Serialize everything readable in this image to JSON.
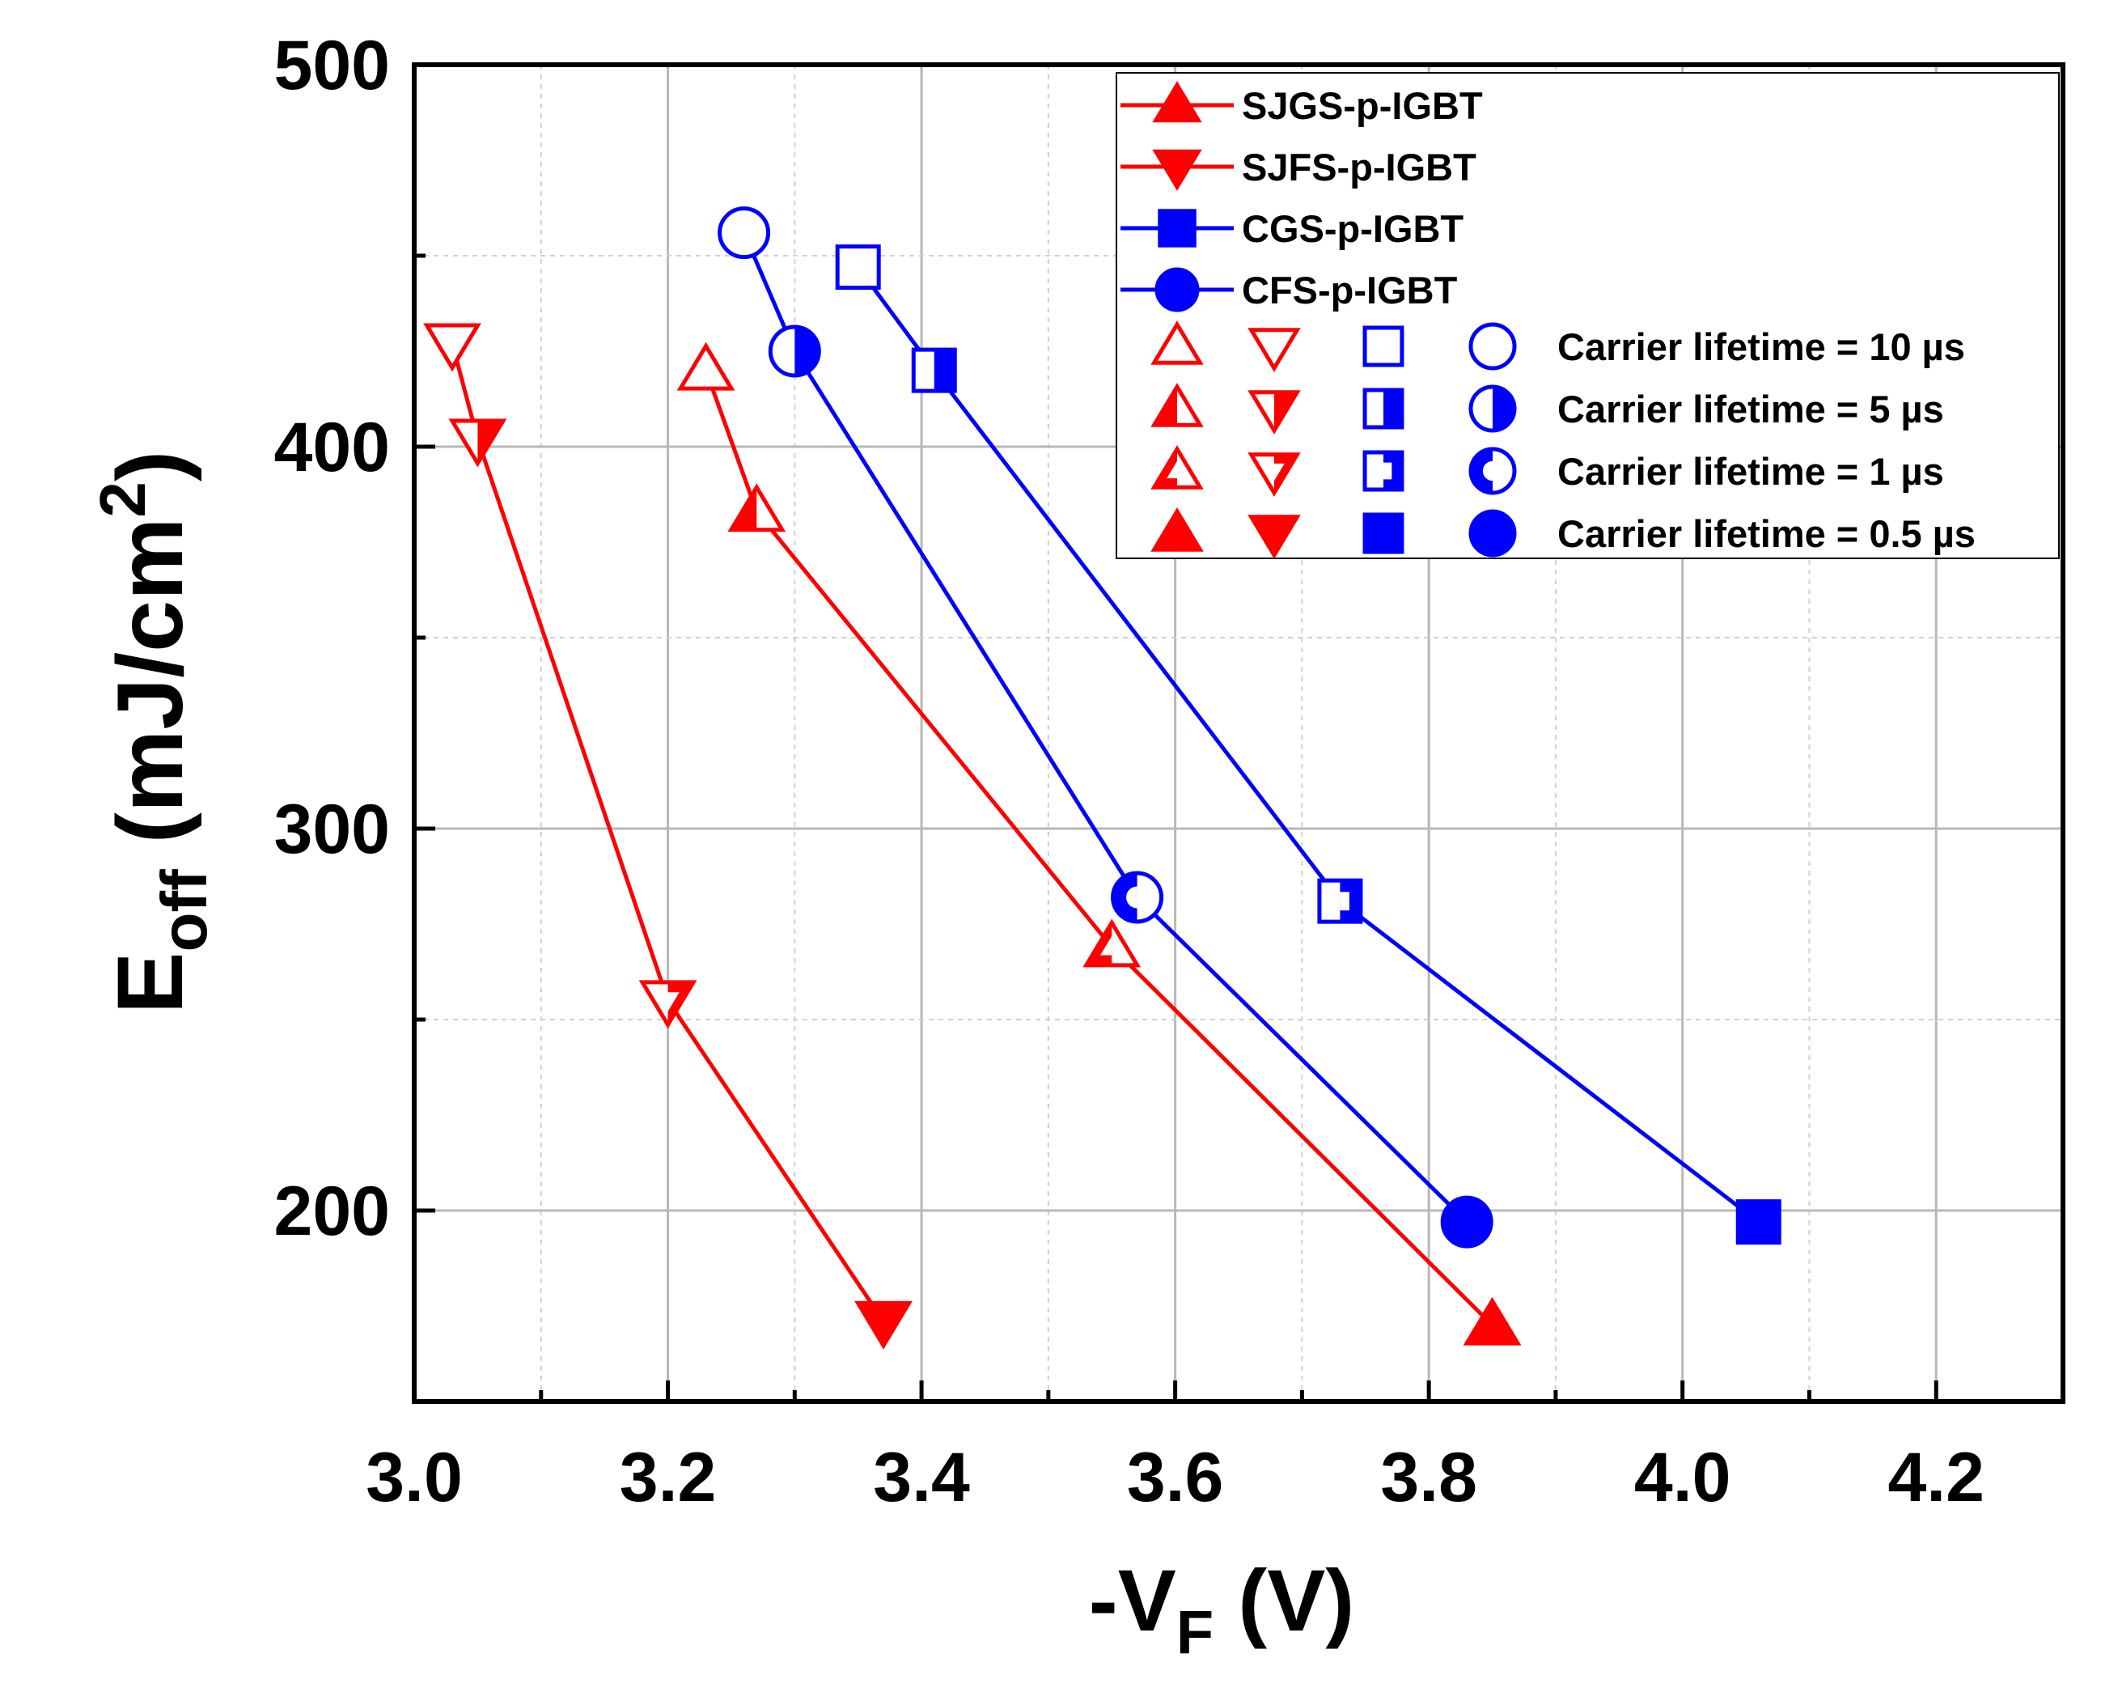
{
  "chart_data": {
    "type": "line",
    "title": "",
    "xlabel": {
      "prefix": "-V",
      "sub": "F",
      "suffix": " (V)"
    },
    "ylabel": {
      "prefix": "E",
      "sub": "off",
      "mid": " (mJ/cm",
      "sup": "2",
      "suffix": ")"
    },
    "xlim": [
      3.0,
      4.3
    ],
    "ylim": [
      150,
      500
    ],
    "xticks": [
      "3.0",
      "3.2",
      "3.4",
      "3.6",
      "3.8",
      "4.0",
      "4.2"
    ],
    "yticks": [
      "200",
      "300",
      "400",
      "500"
    ],
    "grid": true,
    "colors": {
      "red": "#ff0000",
      "blue": "#0000ff"
    },
    "series": [
      {
        "name": "SJGS-p-IGBT",
        "color": "#ff0000",
        "marker": "triangle-up",
        "points": [
          {
            "x": 3.23,
            "y": 420,
            "fill": "none"
          },
          {
            "x": 3.27,
            "y": 383,
            "fill": "left"
          },
          {
            "x": 3.55,
            "y": 269,
            "fill": "left-outline"
          },
          {
            "x": 3.85,
            "y": 170,
            "fill": "full"
          }
        ]
      },
      {
        "name": "SJFS-p-IGBT",
        "color": "#ff0000",
        "marker": "triangle-down",
        "points": [
          {
            "x": 3.03,
            "y": 427,
            "fill": "none"
          },
          {
            "x": 3.05,
            "y": 402,
            "fill": "right"
          },
          {
            "x": 3.2,
            "y": 255,
            "fill": "right-outline"
          },
          {
            "x": 3.37,
            "y": 171,
            "fill": "full"
          }
        ]
      },
      {
        "name": "CGS-p-IGBT",
        "color": "#0000ff",
        "marker": "square",
        "points": [
          {
            "x": 3.35,
            "y": 447,
            "fill": "none"
          },
          {
            "x": 3.41,
            "y": 420,
            "fill": "right"
          },
          {
            "x": 3.73,
            "y": 281,
            "fill": "right-outline"
          },
          {
            "x": 4.06,
            "y": 197,
            "fill": "full"
          }
        ]
      },
      {
        "name": "CFS-p-IGBT",
        "color": "#0000ff",
        "marker": "circle",
        "points": [
          {
            "x": 3.26,
            "y": 456,
            "fill": "none"
          },
          {
            "x": 3.3,
            "y": 425,
            "fill": "right"
          },
          {
            "x": 3.57,
            "y": 282,
            "fill": "left-outline"
          },
          {
            "x": 3.83,
            "y": 197,
            "fill": "full"
          }
        ]
      }
    ],
    "lifetime_legend": [
      {
        "label": "Carrier lifetime = 10 µs",
        "fill": "none"
      },
      {
        "label": "Carrier lifetime = 5 µs",
        "fill": "half"
      },
      {
        "label": "Carrier lifetime = 1 µs",
        "fill": "half-outline"
      },
      {
        "label": "Carrier lifetime = 0.5 µs",
        "fill": "full"
      }
    ],
    "legend_position": "top-right"
  }
}
